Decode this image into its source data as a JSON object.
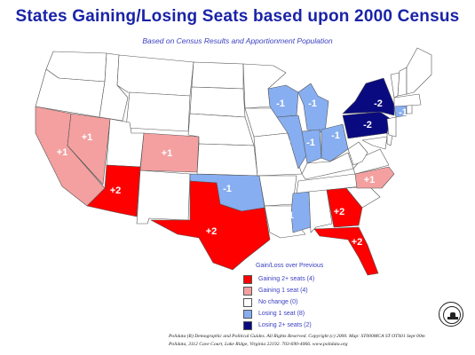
{
  "title": "States Gaining/Losing Seats based upon 2000 Census",
  "subtitle": "Based on Census Results and Apportionment Population",
  "colors": {
    "gain2": "#ff0000",
    "gain1": "#f4a0a0",
    "nochange": "#ffffff",
    "lose1": "#87aef0",
    "lose2": "#0a0a80",
    "outline": "#555555",
    "label": "#ffffff"
  },
  "legend": {
    "title": "Gain/Loss over Previous",
    "items": [
      {
        "label": "Gaining 2+ seats (4)",
        "color": "#ff0000"
      },
      {
        "label": "Gaining 1 seat (4)",
        "color": "#f4a0a0"
      },
      {
        "label": "No change (0)",
        "color": "#ffffff"
      },
      {
        "label": "Losing 1 seat (8)",
        "color": "#87aef0"
      },
      {
        "label": "Losing 2+ seats (2)",
        "color": "#0a0a80"
      }
    ]
  },
  "states": [
    {
      "id": "CA",
      "change": "+1",
      "category": "gain1"
    },
    {
      "id": "NV",
      "change": "+1",
      "category": "gain1"
    },
    {
      "id": "CO",
      "change": "+1",
      "category": "gain1"
    },
    {
      "id": "NC",
      "change": "+1",
      "category": "gain1"
    },
    {
      "id": "AZ",
      "change": "+2",
      "category": "gain2"
    },
    {
      "id": "TX",
      "change": "+2",
      "category": "gain2"
    },
    {
      "id": "GA",
      "change": "+2",
      "category": "gain2"
    },
    {
      "id": "FL",
      "change": "+2",
      "category": "gain2"
    },
    {
      "id": "WI",
      "change": "-1",
      "category": "lose1"
    },
    {
      "id": "MI",
      "change": "-1",
      "category": "lose1"
    },
    {
      "id": "IL",
      "change": "-1",
      "category": "lose1"
    },
    {
      "id": "IN",
      "change": "-1",
      "category": "lose1"
    },
    {
      "id": "OH",
      "change": "-1",
      "category": "lose1"
    },
    {
      "id": "OK",
      "change": "-1",
      "category": "lose1"
    },
    {
      "id": "MS",
      "change": "-1",
      "category": "lose1"
    },
    {
      "id": "CT",
      "change": "-1",
      "category": "lose1"
    },
    {
      "id": "NY",
      "change": "-2",
      "category": "lose2"
    },
    {
      "id": "PA",
      "change": "-2",
      "category": "lose2"
    }
  ],
  "footer": {
    "line1": "Polidata (R) Demographic and Political Guides. All Rights Reserved. Copyright (c) 2000. Map: ST000MCA ST OTS01 Sept 00m",
    "line2": "Polidata, 3112 Cave Court, Lake Ridge, Virginia 22192. 703-690-4066. www.polidata.org"
  }
}
